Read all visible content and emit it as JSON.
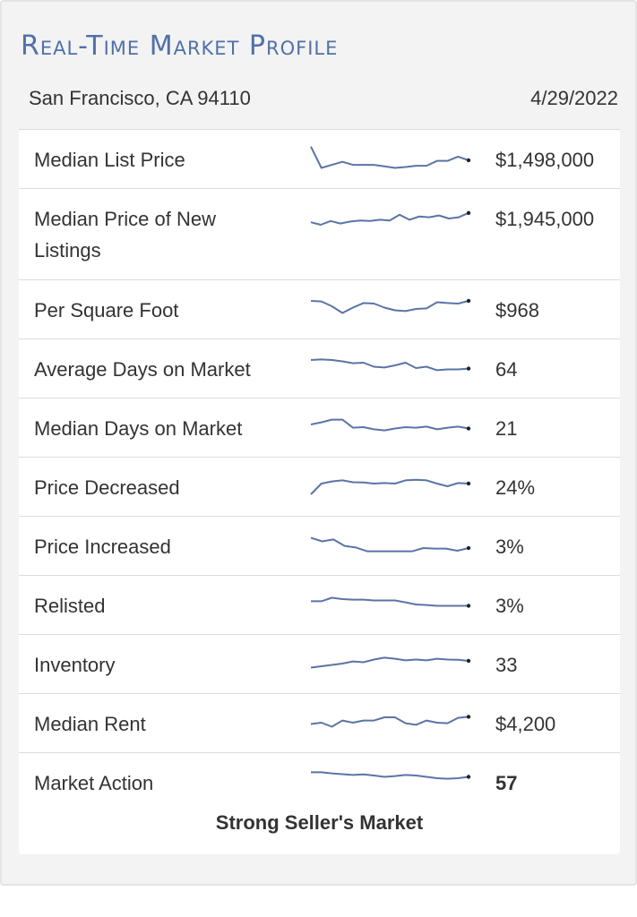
{
  "header": {
    "title": "Real-Time Market Profile",
    "location": "San Francisco, CA 94110",
    "date": "4/29/2022"
  },
  "colors": {
    "title": "#5170a8",
    "sparkline": "#5b74a6",
    "endpoint": "#222222"
  },
  "rows": [
    {
      "label": "Median List Price",
      "value": "$1,498,000",
      "trend": [
        95,
        25,
        35,
        45,
        35,
        35,
        35,
        30,
        25,
        28,
        32,
        32,
        48,
        48,
        62,
        50
      ]
    },
    {
      "label": "Median Price of New Listings",
      "value": "$1,945,000",
      "trend": [
        35,
        25,
        40,
        30,
        38,
        42,
        40,
        45,
        42,
        65,
        45,
        58,
        55,
        62,
        50,
        55,
        72
      ]
    },
    {
      "label": "Per Square Foot",
      "value": "$968",
      "trend": [
        80,
        78,
        60,
        35,
        55,
        72,
        70,
        55,
        45,
        42,
        50,
        52,
        75,
        72,
        70,
        80
      ]
    },
    {
      "label": "Average Days on Market",
      "value": "64",
      "trend": [
        80,
        82,
        80,
        75,
        68,
        70,
        55,
        52,
        60,
        70,
        50,
        55,
        42,
        45,
        45,
        48
      ]
    },
    {
      "label": "Median Days on Market",
      "value": "21",
      "trend": [
        60,
        68,
        78,
        78,
        48,
        50,
        42,
        38,
        45,
        50,
        48,
        52,
        42,
        48,
        52,
        45
      ]
    },
    {
      "label": "Price Decreased",
      "value": "24%",
      "trend": [
        20,
        60,
        68,
        72,
        65,
        64,
        60,
        62,
        60,
        72,
        74,
        72,
        60,
        50,
        62,
        60
      ]
    },
    {
      "label": "Price Increased",
      "value": "3%",
      "trend": [
        78,
        65,
        72,
        48,
        42,
        28,
        28,
        28,
        28,
        28,
        40,
        38,
        38,
        30,
        40
      ]
    },
    {
      "label": "Relisted",
      "value": "3%",
      "trend": [
        62,
        62,
        75,
        70,
        68,
        68,
        65,
        65,
        65,
        58,
        50,
        48,
        45,
        45,
        45,
        45
      ]
    },
    {
      "label": "Inventory",
      "value": "33",
      "trend": [
        35,
        40,
        45,
        50,
        58,
        55,
        65,
        72,
        68,
        62,
        65,
        62,
        68,
        65,
        64,
        60
      ]
    },
    {
      "label": "Median Rent",
      "value": "$4,200",
      "trend": [
        45,
        50,
        35,
        58,
        50,
        58,
        58,
        70,
        70,
        48,
        42,
        58,
        50,
        48,
        68,
        72
      ]
    },
    {
      "label": "Market Action",
      "value": "57",
      "trend": [
        72,
        72,
        68,
        65,
        62,
        64,
        60,
        55,
        58,
        62,
        60,
        55,
        50,
        48,
        50,
        55
      ]
    }
  ],
  "verdict": "Strong Seller's Market"
}
